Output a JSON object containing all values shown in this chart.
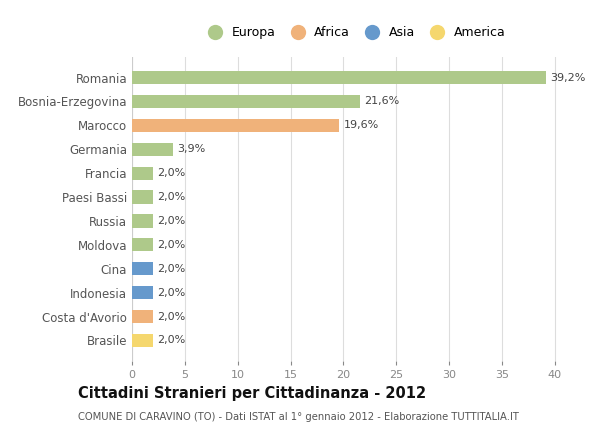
{
  "countries": [
    "Romania",
    "Bosnia-Erzegovina",
    "Marocco",
    "Germania",
    "Francia",
    "Paesi Bassi",
    "Russia",
    "Moldova",
    "Cina",
    "Indonesia",
    "Costa d'Avorio",
    "Brasile"
  ],
  "values": [
    39.2,
    21.6,
    19.6,
    3.9,
    2.0,
    2.0,
    2.0,
    2.0,
    2.0,
    2.0,
    2.0,
    2.0
  ],
  "labels": [
    "39,2%",
    "21,6%",
    "19,6%",
    "3,9%",
    "2,0%",
    "2,0%",
    "2,0%",
    "2,0%",
    "2,0%",
    "2,0%",
    "2,0%",
    "2,0%"
  ],
  "colors": [
    "#aec98a",
    "#aec98a",
    "#f0b27a",
    "#aec98a",
    "#aec98a",
    "#aec98a",
    "#aec98a",
    "#aec98a",
    "#6699cc",
    "#6699cc",
    "#f0b27a",
    "#f5d76e"
  ],
  "legend_labels": [
    "Europa",
    "Africa",
    "Asia",
    "America"
  ],
  "legend_colors": [
    "#aec98a",
    "#f0b27a",
    "#6699cc",
    "#f5d76e"
  ],
  "title": "Cittadini Stranieri per Cittadinanza - 2012",
  "subtitle": "COMUNE DI CARAVINO (TO) - Dati ISTAT al 1° gennaio 2012 - Elaborazione TUTTITALIA.IT",
  "xlim": [
    0,
    42
  ],
  "xticks": [
    0,
    5,
    10,
    15,
    20,
    25,
    30,
    35,
    40
  ],
  "background_color": "#ffffff",
  "grid_color": "#dddddd",
  "bar_height": 0.55
}
